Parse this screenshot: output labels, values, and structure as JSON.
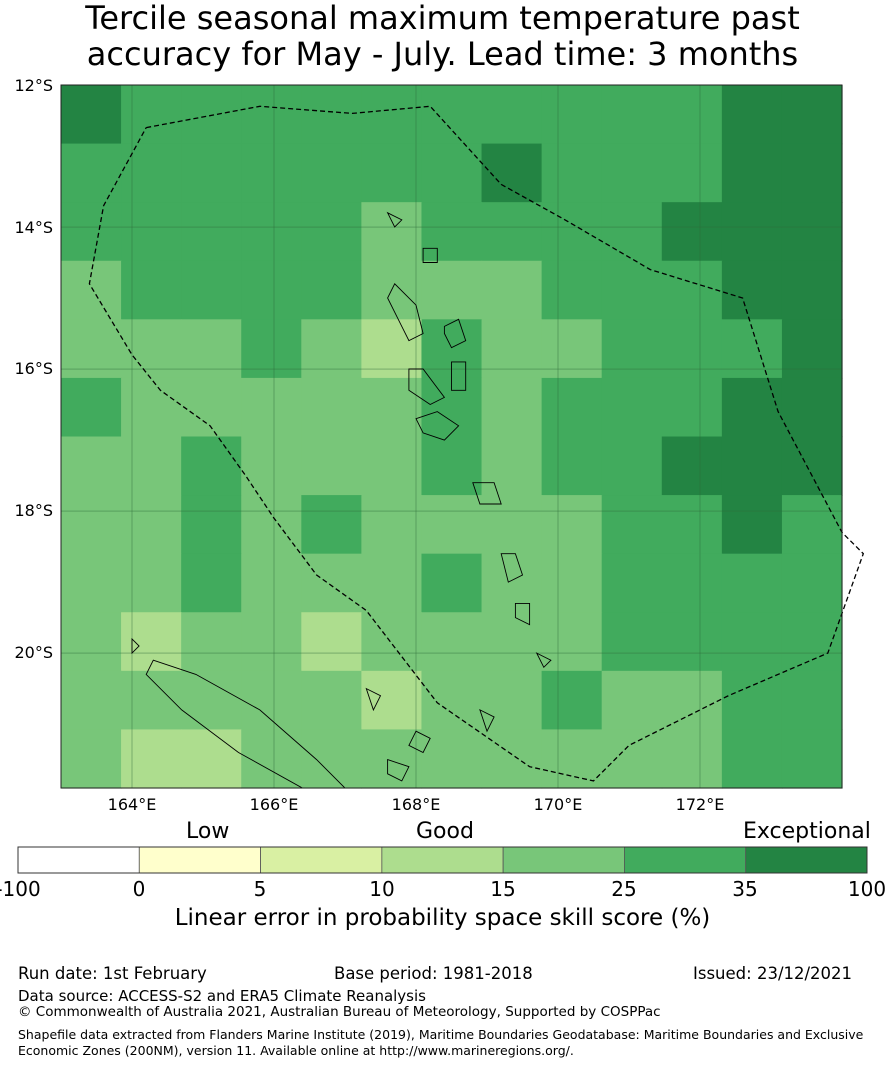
{
  "title": {
    "line1": "Tercile seasonal maximum temperature past",
    "line2": "accuracy for May - July. Lead time: 3 months"
  },
  "map": {
    "lon_range": [
      163,
      174
    ],
    "lat_range": [
      -21.9,
      -12
    ],
    "lat_ticks": [
      "12°S",
      "14°S",
      "16°S",
      "18°S",
      "20°S"
    ],
    "lon_ticks": [
      "164°E",
      "166°E",
      "168°E",
      "170°E",
      "172°E"
    ],
    "grid_cell_deg": 0.833,
    "cols": 13,
    "rows": 12,
    "skill_classes_grid": [
      [
        5,
        4,
        4,
        4,
        4,
        4,
        4,
        4,
        4,
        4,
        4,
        5,
        5
      ],
      [
        4,
        4,
        4,
        4,
        4,
        4,
        4,
        5,
        4,
        4,
        4,
        5,
        5
      ],
      [
        4,
        4,
        4,
        4,
        4,
        3,
        4,
        4,
        4,
        4,
        5,
        5,
        5
      ],
      [
        3,
        4,
        4,
        4,
        4,
        3,
        3,
        3,
        4,
        4,
        4,
        5,
        5
      ],
      [
        3,
        3,
        3,
        4,
        3,
        2,
        4,
        3,
        3,
        4,
        4,
        4,
        5
      ],
      [
        4,
        3,
        3,
        3,
        3,
        3,
        4,
        3,
        4,
        4,
        4,
        5,
        5
      ],
      [
        3,
        3,
        4,
        3,
        3,
        3,
        4,
        3,
        4,
        4,
        5,
        5,
        5
      ],
      [
        3,
        3,
        4,
        3,
        4,
        3,
        3,
        3,
        3,
        4,
        4,
        5,
        4
      ],
      [
        3,
        3,
        4,
        3,
        3,
        3,
        4,
        3,
        3,
        4,
        4,
        4,
        4
      ],
      [
        3,
        2,
        3,
        3,
        2,
        3,
        3,
        3,
        3,
        4,
        4,
        4,
        4
      ],
      [
        3,
        3,
        3,
        3,
        3,
        2,
        3,
        3,
        4,
        3,
        3,
        4,
        4
      ],
      [
        3,
        2,
        2,
        3,
        3,
        3,
        3,
        3,
        3,
        3,
        3,
        4,
        4
      ]
    ],
    "boundary": [
      [
        164.2,
        -12.6
      ],
      [
        165.8,
        -12.3
      ],
      [
        167.1,
        -12.4
      ],
      [
        168.2,
        -12.3
      ],
      [
        169.2,
        -13.4
      ],
      [
        170.1,
        -13.9
      ],
      [
        171.3,
        -14.6
      ],
      [
        172.6,
        -15.0
      ],
      [
        173.1,
        -16.6
      ],
      [
        174.0,
        -18.3
      ],
      [
        174.3,
        -18.6
      ],
      [
        173.8,
        -20.0
      ],
      [
        172.4,
        -20.6
      ],
      [
        171.0,
        -21.3
      ],
      [
        170.5,
        -21.8
      ],
      [
        169.6,
        -21.6
      ],
      [
        168.3,
        -20.7
      ],
      [
        167.3,
        -19.4
      ],
      [
        166.6,
        -18.9
      ],
      [
        166.0,
        -18.1
      ],
      [
        165.6,
        -17.5
      ],
      [
        165.1,
        -16.8
      ],
      [
        164.4,
        -16.3
      ],
      [
        164.0,
        -15.8
      ],
      [
        163.4,
        -14.8
      ],
      [
        163.6,
        -13.7
      ],
      [
        164.2,
        -12.6
      ]
    ],
    "islands": [
      [
        [
          167.8,
          -15.4
        ],
        [
          167.6,
          -15.0
        ],
        [
          167.7,
          -14.8
        ],
        [
          168.0,
          -15.1
        ],
        [
          168.1,
          -15.5
        ],
        [
          167.9,
          -15.6
        ]
      ],
      [
        [
          168.4,
          -15.4
        ],
        [
          168.6,
          -15.3
        ],
        [
          168.7,
          -15.6
        ],
        [
          168.5,
          -15.7
        ],
        [
          168.4,
          -15.5
        ]
      ],
      [
        [
          167.9,
          -16.0
        ],
        [
          168.1,
          -16.0
        ],
        [
          168.4,
          -16.4
        ],
        [
          168.2,
          -16.5
        ],
        [
          167.9,
          -16.3
        ]
      ],
      [
        [
          168.5,
          -15.9
        ],
        [
          168.7,
          -15.9
        ],
        [
          168.7,
          -16.3
        ],
        [
          168.5,
          -16.3
        ]
      ],
      [
        [
          168.0,
          -16.7
        ],
        [
          168.3,
          -16.6
        ],
        [
          168.6,
          -16.8
        ],
        [
          168.4,
          -17.0
        ],
        [
          168.1,
          -16.9
        ]
      ],
      [
        [
          168.8,
          -17.6
        ],
        [
          169.1,
          -17.6
        ],
        [
          169.2,
          -17.9
        ],
        [
          168.9,
          -17.9
        ]
      ],
      [
        [
          169.2,
          -18.6
        ],
        [
          169.4,
          -18.6
        ],
        [
          169.5,
          -18.9
        ],
        [
          169.3,
          -19.0
        ]
      ],
      [
        [
          169.4,
          -19.3
        ],
        [
          169.6,
          -19.3
        ],
        [
          169.6,
          -19.6
        ],
        [
          169.4,
          -19.5
        ]
      ],
      [
        [
          169.7,
          -20.0
        ],
        [
          169.9,
          -20.1
        ],
        [
          169.8,
          -20.2
        ]
      ],
      [
        [
          168.1,
          -14.3
        ],
        [
          168.3,
          -14.3
        ],
        [
          168.3,
          -14.5
        ],
        [
          168.1,
          -14.5
        ]
      ],
      [
        [
          167.6,
          -13.8
        ],
        [
          167.8,
          -13.9
        ],
        [
          167.7,
          -14.0
        ]
      ],
      [
        [
          168.9,
          -20.8
        ],
        [
          169.1,
          -20.9
        ],
        [
          169.0,
          -21.1
        ]
      ],
      [
        [
          168.0,
          -21.1
        ],
        [
          168.2,
          -21.2
        ],
        [
          168.1,
          -21.4
        ],
        [
          167.9,
          -21.3
        ]
      ],
      [
        [
          167.6,
          -21.5
        ],
        [
          167.9,
          -21.6
        ],
        [
          167.8,
          -21.8
        ],
        [
          167.6,
          -21.7
        ]
      ],
      [
        [
          164.3,
          -20.1
        ],
        [
          164.9,
          -20.3
        ],
        [
          165.8,
          -20.8
        ],
        [
          166.6,
          -21.5
        ],
        [
          167.0,
          -21.9
        ],
        [
          166.4,
          -21.9
        ],
        [
          165.5,
          -21.4
        ],
        [
          164.7,
          -20.8
        ],
        [
          164.2,
          -20.3
        ]
      ],
      [
        [
          164.0,
          -19.8
        ],
        [
          164.1,
          -19.9
        ],
        [
          164.0,
          -20.0
        ]
      ],
      [
        [
          167.3,
          -20.5
        ],
        [
          167.5,
          -20.6
        ],
        [
          167.4,
          -20.8
        ]
      ]
    ]
  },
  "colorbar": {
    "colors": [
      "#ffffff",
      "#ffffcc",
      "#d9f0a3",
      "#addd8e",
      "#78c679",
      "#41ab5d",
      "#238443"
    ],
    "ticks": [
      "-100",
      "0",
      "5",
      "10",
      "15",
      "25",
      "35",
      "100"
    ],
    "category_labels": {
      "low": "Low",
      "good": "Good",
      "exceptional": "Exceptional"
    },
    "caption": "Linear error in probability space skill score (%)"
  },
  "footer": {
    "run_date": "Run date: 1st February",
    "base_period": "Base period: 1981-2018",
    "issued": "Issued: 23/12/2021",
    "data_source": "Data source: ACCESS-S2 and ERA5 Climate Reanalysis",
    "copyright": "© Commonwealth of Australia 2021, Australian Bureau of Meteorology, Supported by COSPPac",
    "shapefile_line1": "Shapefile data extracted from Flanders Marine Institute (2019), Maritime Boundaries Geodatabase: Maritime Boundaries and Exclusive",
    "shapefile_line2": "Economic Zones (200NM), version 11. Available online at http://www.marineregions.org/."
  }
}
